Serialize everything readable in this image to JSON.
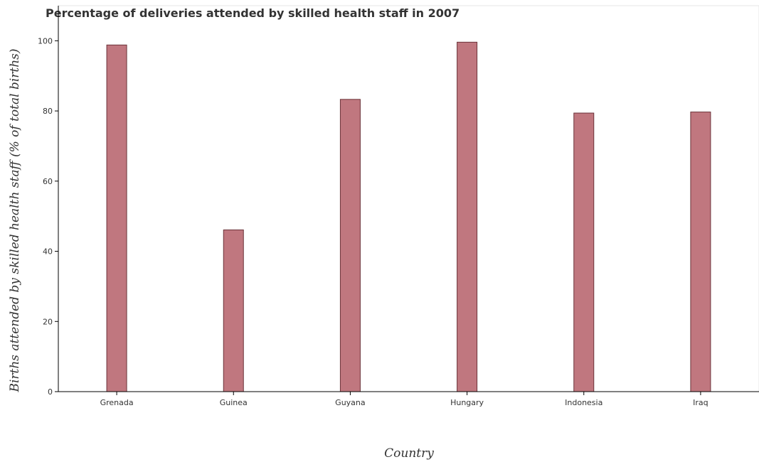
{
  "chart_data": {
    "type": "bar",
    "title": "Percentage of deliveries attended by skilled health staff in 2007",
    "xlabel": "Country",
    "ylabel": "Births attended by skilled health staff (% of total births)",
    "categories": [
      "Grenada",
      "Guinea",
      "Guyana",
      "Hungary",
      "Indonesia",
      "Iraq"
    ],
    "values": [
      98.8,
      46.1,
      83.3,
      99.6,
      79.4,
      79.7
    ],
    "ylim": [
      0,
      110
    ],
    "yticks": [
      0,
      20,
      40,
      60,
      80,
      100
    ],
    "grid": false,
    "bar_color": "#c0777f",
    "bar_edge_color": "#6b3238"
  }
}
